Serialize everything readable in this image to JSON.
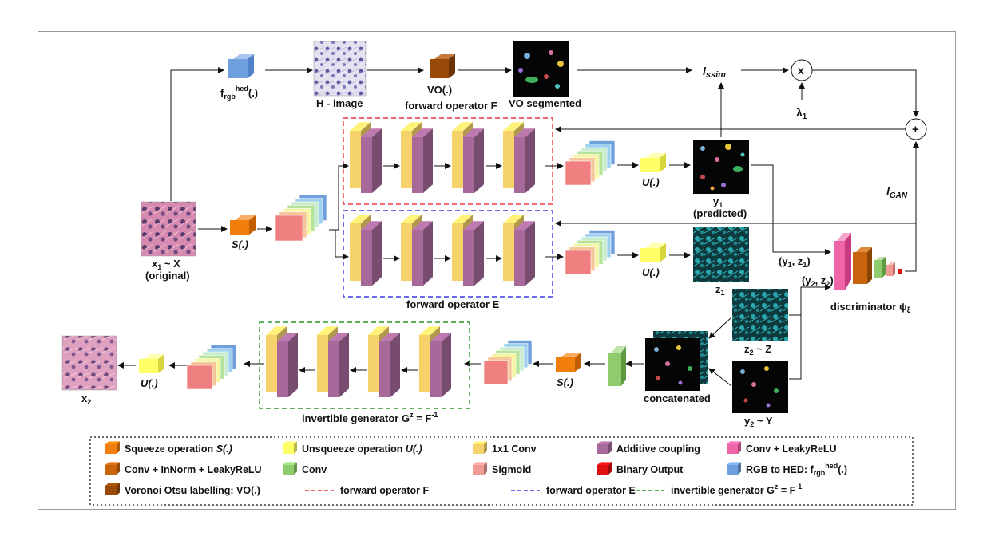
{
  "labels": {
    "frgb": "f",
    "frgb_sub": "rgb",
    "frgb_sup": "hed",
    "frgb_tail": "(.)",
    "h_image": "H - image",
    "vo_op": "VO(.)",
    "vo_segmented": "VO segmented",
    "forward_operator_f": "forward operator F",
    "forward_operator_e": "forward operator E",
    "l_ssim": "l",
    "l_ssim_sub": "ssim",
    "multiply": "x",
    "plus": "+",
    "lambda": "λ",
    "lambda_sub": "1",
    "l_gan": "l",
    "l_gan_sub": "GAN",
    "x1": "x",
    "x1_sub": "1",
    "x1_tail": " ~ X",
    "original": "(original)",
    "s_op": "S(.)",
    "u_op": "U(.)",
    "y1": "y",
    "y1_sub": "1",
    "predicted": "(predicted)",
    "z1": "z",
    "z1_sub": "1",
    "y1z1": "(y",
    "y1z1_a": "1",
    "y1z1_b": ", z",
    "y1z1_c": "1",
    "y1z1_d": ")",
    "y2z2": "(y",
    "y2z2_a": "2",
    "y2z2_b": ", z",
    "y2z2_c": "2",
    "y2z2_d": ")",
    "discriminator": "discriminator ψ",
    "discriminator_sub": "ξ",
    "z2": "z",
    "z2_sub": "2",
    "z2_tail": " ~ Z",
    "y2": "y",
    "y2_sub": "2",
    "y2_tail": " ~ Y",
    "concatenated": "concatenated",
    "x2": "x",
    "x2_sub": "2",
    "inv_gen": "invertible generator G",
    "inv_gen_sup": "z",
    "inv_gen_mid": " = F",
    "inv_gen_sup2": "-1"
  },
  "legend": [
    {
      "name": "squeeze",
      "text": "Squeeze operation ",
      "italic": "S(.)",
      "color": "#f27f0c"
    },
    {
      "name": "unsqueeze",
      "text": "Unsqueeze operation ",
      "italic": "U(.)",
      "color": "#ffff66"
    },
    {
      "name": "conv1x1",
      "text": "1x1 Conv",
      "italic": "",
      "color": "#f5d36a"
    },
    {
      "name": "additive-coupling",
      "text": "Additive coupling",
      "italic": "",
      "color": "#a6699a"
    },
    {
      "name": "conv-leakyrelu",
      "text": "Conv + LeakyReLU",
      "italic": "",
      "color": "#f064a8"
    },
    {
      "name": "conv-innorm-leakyrelu",
      "text": "Conv + InNorm + LeakyReLU",
      "italic": "",
      "color": "#c8640c"
    },
    {
      "name": "conv",
      "text": "Conv",
      "italic": "",
      "color": "#8fcc6e"
    },
    {
      "name": "sigmoid",
      "text": "Sigmoid",
      "italic": "",
      "color": "#f09a94"
    },
    {
      "name": "binary-output",
      "text": "Binary Output",
      "italic": "",
      "color": "#dd1111"
    },
    {
      "name": "rgb-to-hed",
      "text": "RGB to HED: f",
      "italic": "",
      "color": "#6f9fdc"
    },
    {
      "name": "voronoi",
      "text": "Voronoi Otsu labelling: VO(.)",
      "italic": "",
      "color": "#9a4a08"
    },
    {
      "name": "line-f",
      "text": "forward operator F",
      "italic": "",
      "color": "#e83a3a"
    },
    {
      "name": "line-e",
      "text": "forward operator E",
      "italic": "",
      "color": "#3a3ae0"
    },
    {
      "name": "line-g",
      "text": "invertible generator G",
      "italic": "",
      "color": "#2a9a2a"
    }
  ],
  "colors": {
    "conv1x1": "#f5d36a",
    "coupling": "#a6699a",
    "red_dash": "#e83a3a",
    "blue_dash": "#3a3ae0",
    "green_dash": "#2a9a2a"
  }
}
